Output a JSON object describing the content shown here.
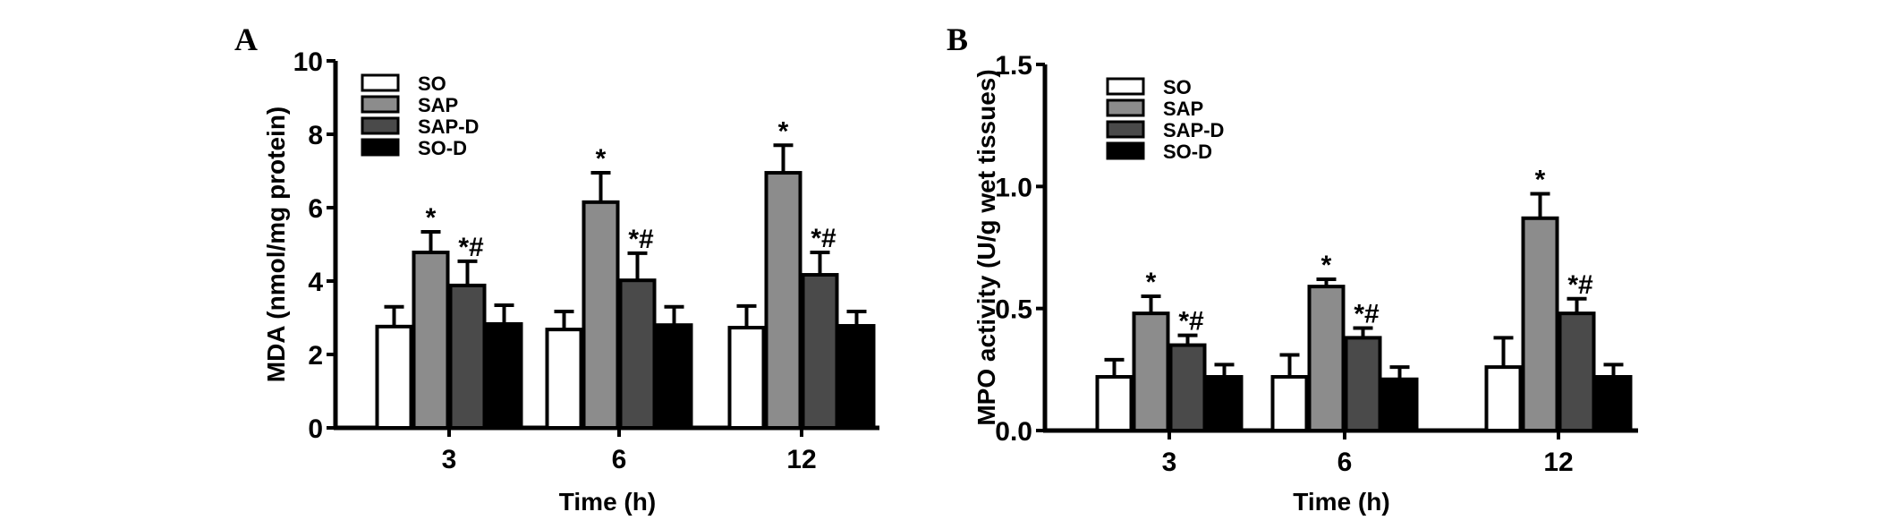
{
  "chart_data": [
    {
      "type": "bar",
      "panel_label": "A",
      "categories": [
        "3",
        "6",
        "12"
      ],
      "xlabel": "Time (h)",
      "ylabel": "MDA (nmol/mg protein)",
      "ylim": [
        0,
        10
      ],
      "yticks": [
        "0",
        "2",
        "4",
        "6",
        "8",
        "10"
      ],
      "legend_position": "top-left",
      "series": [
        {
          "name": "SO",
          "color": "#ffffff",
          "values": [
            2.76,
            2.68,
            2.73
          ],
          "error_upper": [
            3.3,
            3.17,
            3.32
          ],
          "annotations": [
            "",
            "",
            ""
          ]
        },
        {
          "name": "SAP",
          "color": "#8c8c8c",
          "values": [
            4.78,
            6.15,
            6.95
          ],
          "error_upper": [
            5.34,
            6.95,
            7.7
          ],
          "annotations": [
            "*",
            "*",
            "*"
          ]
        },
        {
          "name": "SAP-D",
          "color": "#4a4a4a",
          "values": [
            3.88,
            4.02,
            4.17
          ],
          "error_upper": [
            4.54,
            4.76,
            4.78
          ],
          "annotations": [
            "*#",
            "*#",
            "*#"
          ]
        },
        {
          "name": "SO-D",
          "color": "#000000",
          "values": [
            2.83,
            2.8,
            2.78
          ],
          "error_upper": [
            3.34,
            3.3,
            3.17
          ],
          "annotations": [
            "",
            "",
            ""
          ]
        }
      ]
    },
    {
      "type": "bar",
      "panel_label": "B",
      "categories": [
        "3",
        "6",
        "12"
      ],
      "xlabel": "Time (h)",
      "ylabel": "MPO activity (U/g wet tissues)",
      "ylim": [
        0,
        1.5
      ],
      "yticks": [
        "0.0",
        "0.5",
        "1.0",
        "1.5"
      ],
      "legend_position": "top-left",
      "series": [
        {
          "name": "SO",
          "color": "#ffffff",
          "values": [
            0.22,
            0.22,
            0.26
          ],
          "error_upper": [
            0.29,
            0.31,
            0.38
          ],
          "annotations": [
            "",
            "",
            ""
          ]
        },
        {
          "name": "SAP",
          "color": "#8c8c8c",
          "values": [
            0.48,
            0.59,
            0.87
          ],
          "error_upper": [
            0.55,
            0.62,
            0.97
          ],
          "annotations": [
            "*",
            "*",
            "*"
          ]
        },
        {
          "name": "SAP-D",
          "color": "#4a4a4a",
          "values": [
            0.35,
            0.38,
            0.48
          ],
          "error_upper": [
            0.39,
            0.42,
            0.54
          ],
          "annotations": [
            "*#",
            "*#",
            "*#"
          ]
        },
        {
          "name": "SO-D",
          "color": "#000000",
          "values": [
            0.22,
            0.21,
            0.22
          ],
          "error_upper": [
            0.27,
            0.26,
            0.27
          ],
          "annotations": [
            "",
            "",
            ""
          ]
        }
      ]
    }
  ]
}
